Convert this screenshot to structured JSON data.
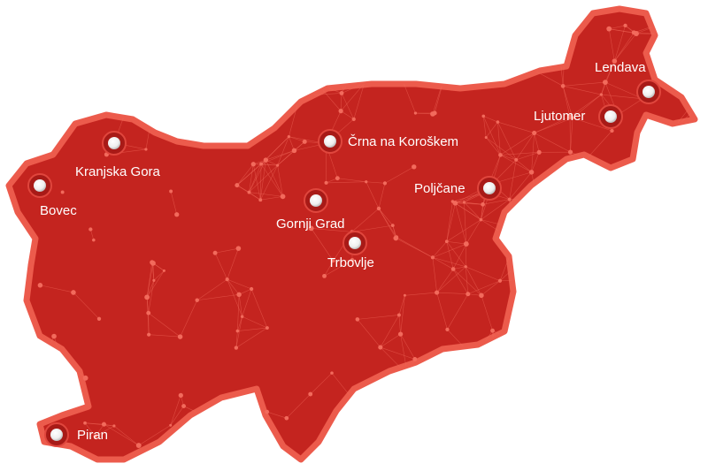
{
  "map": {
    "fill_color": "#c4241f",
    "border_color": "#ec5b4c",
    "network_color": "#f26a5c",
    "marker_color": "#ffffff",
    "cities": [
      {
        "name": "Lendava"
      },
      {
        "name": "Ljutomer"
      },
      {
        "name": "Črna na Koroškem"
      },
      {
        "name": "Kranjska Gora"
      },
      {
        "name": "Bovec"
      },
      {
        "name": "Poljčane"
      },
      {
        "name": "Gornji Grad"
      },
      {
        "name": "Trbovlje"
      },
      {
        "name": "Piran"
      }
    ]
  }
}
